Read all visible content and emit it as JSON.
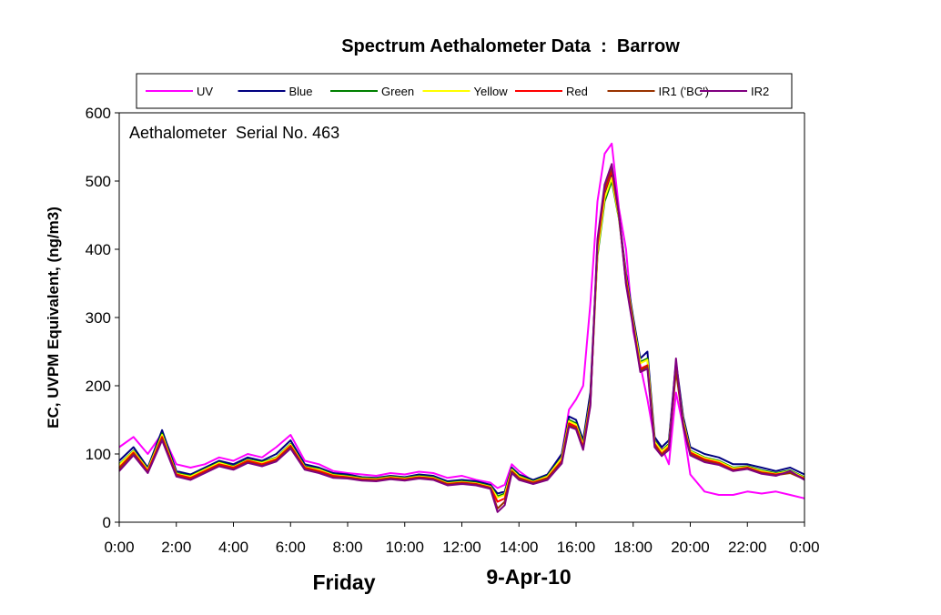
{
  "chart_data": {
    "type": "line",
    "title": "Spectrum Aethalometer Data  :  Barrow",
    "ylabel": "EC, UVPM Equivalent, (ng/m3)",
    "xlabel": "",
    "annotation": "Aethalometer  Serial No. 463",
    "footer_left": "Friday",
    "footer_right": "9-Apr-10",
    "ylim": [
      0,
      600
    ],
    "yticks": [
      "0",
      "100",
      "200",
      "300",
      "400",
      "500",
      "600"
    ],
    "xlim": [
      0,
      24
    ],
    "xticks": [
      "0:00",
      "2:00",
      "4:00",
      "6:00",
      "8:00",
      "10:00",
      "12:00",
      "14:00",
      "16:00",
      "18:00",
      "20:00",
      "22:00",
      "0:00"
    ],
    "legend_position": "top",
    "x": [
      0,
      0.5,
      1,
      1.5,
      2,
      2.5,
      3,
      3.5,
      4,
      4.5,
      5,
      5.5,
      6,
      6.5,
      7,
      7.5,
      8,
      8.5,
      9,
      9.5,
      10,
      10.5,
      11,
      11.5,
      12,
      12.5,
      13,
      13.25,
      13.5,
      13.75,
      14,
      14.5,
      15,
      15.5,
      15.75,
      16,
      16.25,
      16.5,
      16.75,
      17,
      17.25,
      17.5,
      17.75,
      18,
      18.25,
      18.5,
      18.75,
      19,
      19.25,
      19.5,
      19.75,
      20,
      20.5,
      21,
      21.5,
      22,
      22.5,
      23,
      23.5,
      24
    ],
    "series": [
      {
        "name": "UV",
        "color": "#ff00ff",
        "values": [
          110,
          125,
          100,
          130,
          85,
          80,
          85,
          95,
          90,
          100,
          95,
          110,
          128,
          90,
          85,
          75,
          72,
          70,
          68,
          72,
          70,
          74,
          72,
          65,
          68,
          62,
          58,
          50,
          55,
          85,
          75,
          60,
          70,
          100,
          165,
          180,
          200,
          320,
          470,
          540,
          555,
          460,
          400,
          280,
          230,
          180,
          120,
          110,
          85,
          190,
          140,
          70,
          45,
          40,
          40,
          45,
          42,
          45,
          40,
          35
        ]
      },
      {
        "name": "Blue",
        "color": "#000080",
        "values": [
          90,
          110,
          80,
          135,
          75,
          70,
          80,
          90,
          85,
          95,
          90,
          100,
          120,
          85,
          80,
          72,
          70,
          66,
          65,
          68,
          66,
          70,
          68,
          60,
          62,
          60,
          55,
          42,
          45,
          80,
          70,
          62,
          70,
          100,
          155,
          150,
          120,
          190,
          400,
          480,
          510,
          450,
          365,
          300,
          240,
          250,
          125,
          110,
          120,
          235,
          155,
          110,
          100,
          95,
          85,
          85,
          80,
          75,
          80,
          70
        ]
      },
      {
        "name": "Green",
        "color": "#008000",
        "values": [
          85,
          105,
          78,
          130,
          72,
          68,
          78,
          88,
          82,
          92,
          88,
          95,
          115,
          82,
          78,
          70,
          68,
          65,
          64,
          67,
          65,
          68,
          66,
          58,
          60,
          58,
          53,
          38,
          42,
          78,
          68,
          60,
          68,
          95,
          150,
          145,
          115,
          180,
          390,
          470,
          500,
          445,
          360,
          295,
          235,
          240,
          120,
          105,
          115,
          230,
          150,
          105,
          95,
          90,
          80,
          82,
          76,
          72,
          76,
          66
        ]
      },
      {
        "name": "Yellow",
        "color": "#ffff00",
        "values": [
          84,
          104,
          77,
          128,
          71,
          67,
          77,
          87,
          81,
          91,
          87,
          94,
          114,
          81,
          77,
          69,
          67,
          64,
          63,
          66,
          64,
          67,
          65,
          57,
          59,
          57,
          52,
          36,
          40,
          77,
          67,
          59,
          67,
          94,
          148,
          143,
          113,
          178,
          395,
          475,
          505,
          447,
          358,
          293,
          233,
          238,
          118,
          104,
          113,
          228,
          148,
          104,
          94,
          89,
          79,
          81,
          75,
          71,
          75,
          65
        ]
      },
      {
        "name": "Red",
        "color": "#ff0000",
        "values": [
          80,
          102,
          75,
          125,
          70,
          65,
          75,
          85,
          80,
          90,
          85,
          92,
          112,
          80,
          75,
          68,
          66,
          63,
          62,
          65,
          63,
          66,
          64,
          56,
          58,
          56,
          51,
          30,
          35,
          75,
          65,
          58,
          65,
          90,
          145,
          140,
          110,
          175,
          405,
          485,
          515,
          450,
          355,
          290,
          225,
          230,
          115,
          100,
          110,
          225,
          145,
          102,
          92,
          87,
          77,
          80,
          73,
          70,
          73,
          64
        ]
      },
      {
        "name": "IR1 ('BC')",
        "color": "#993300",
        "values": [
          78,
          100,
          73,
          122,
          68,
          63,
          73,
          83,
          78,
          88,
          83,
          90,
          110,
          78,
          73,
          66,
          65,
          62,
          61,
          64,
          62,
          65,
          63,
          55,
          57,
          55,
          50,
          20,
          30,
          74,
          64,
          57,
          64,
          88,
          142,
          138,
          108,
          172,
          410,
          490,
          520,
          450,
          350,
          288,
          222,
          228,
          113,
          99,
          108,
          222,
          143,
          100,
          90,
          85,
          76,
          79,
          72,
          69,
          72,
          63
        ]
      },
      {
        "name": "IR2",
        "color": "#800080",
        "values": [
          75,
          98,
          72,
          120,
          67,
          62,
          72,
          82,
          77,
          87,
          82,
          89,
          108,
          77,
          72,
          65,
          64,
          61,
          60,
          63,
          61,
          64,
          62,
          54,
          56,
          54,
          49,
          15,
          25,
          72,
          62,
          56,
          62,
          86,
          140,
          136,
          106,
          170,
          415,
          495,
          525,
          452,
          348,
          285,
          220,
          225,
          110,
          97,
          106,
          240,
          140,
          98,
          88,
          84,
          75,
          78,
          71,
          68,
          75,
          62
        ]
      }
    ]
  }
}
